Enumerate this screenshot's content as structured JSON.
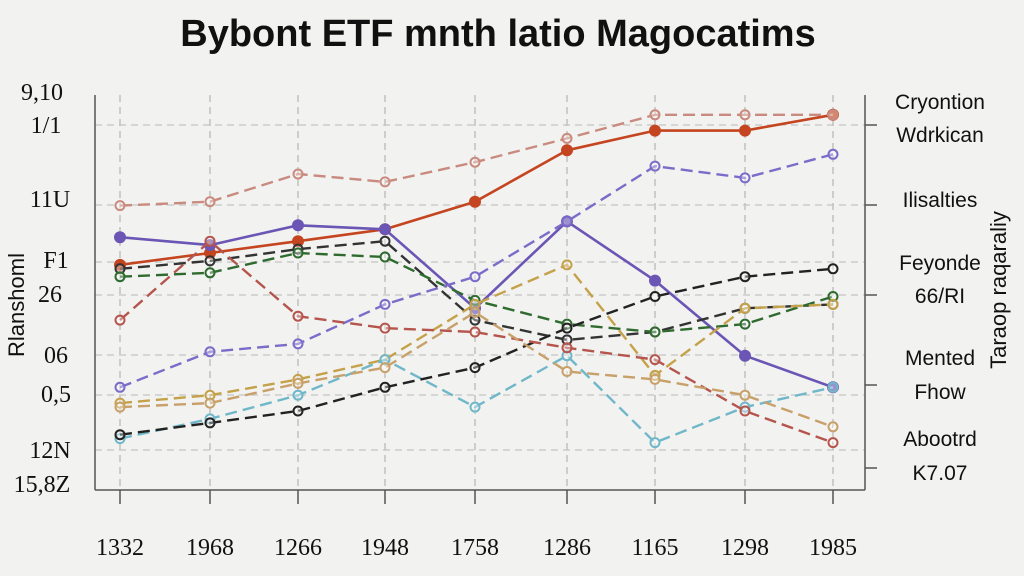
{
  "chart_data": {
    "type": "line",
    "title": "Bybont ETF mnth latio Magocatims",
    "ylabel": "Rlanshoml",
    "right_axis_label": "Taraop raqaraliy",
    "categories": [
      "1332",
      "1968",
      "1266",
      "1948",
      "1758",
      "1286",
      "1165",
      "1298",
      "1985"
    ],
    "y_tick_labels": [
      "9,10",
      "1/1",
      "11U",
      "F1",
      "26",
      "06",
      "0,5",
      "12N",
      "15,8Z"
    ],
    "right_labels": [
      "Cryontion",
      "Wdrkican",
      "Ilisalties",
      "Feyonde",
      "66/RI",
      "Mented",
      "Fhow",
      "Abootrd",
      "K7.07"
    ],
    "ylim": [
      0,
      100
    ],
    "grid": true,
    "series": [
      {
        "color": "#c4451f",
        "style": "solid",
        "values": [
          57,
          60,
          63,
          66,
          73,
          86,
          91,
          91,
          95
        ]
      },
      {
        "color": "#6b55b5",
        "style": "solid",
        "values": [
          64,
          62,
          67,
          66,
          46,
          68,
          53,
          34,
          26
        ]
      },
      {
        "color": "#333333",
        "style": "dashed",
        "values": [
          56,
          58,
          61,
          63,
          43,
          38,
          40,
          46,
          47
        ]
      },
      {
        "color": "#2f6b2f",
        "style": "dashed",
        "values": [
          54,
          55,
          60,
          59,
          48,
          42,
          40,
          42,
          49
        ]
      },
      {
        "color": "#c98a7f",
        "style": "dashed",
        "values": [
          72,
          73,
          80,
          78,
          83,
          89,
          95,
          95,
          95
        ]
      },
      {
        "color": "#7b6cc9",
        "style": "dashed",
        "values": [
          26,
          35,
          37,
          47,
          54,
          68,
          82,
          79,
          85
        ]
      },
      {
        "color": "#c4a24a",
        "style": "dashed",
        "values": [
          22,
          24,
          28,
          33,
          47,
          57,
          29,
          46,
          47
        ]
      },
      {
        "color": "#6fb7c9",
        "style": "dashed",
        "values": [
          13,
          18,
          24,
          33,
          21,
          34,
          12,
          21,
          26
        ]
      },
      {
        "color": "#222222",
        "style": "dashed",
        "values": [
          14,
          17,
          20,
          26,
          31,
          41,
          49,
          54,
          56
        ]
      },
      {
        "color": "#b5554d",
        "style": "dashed",
        "values": [
          43,
          63,
          44,
          41,
          40,
          36,
          33,
          20,
          12
        ]
      },
      {
        "color": "#c8a06a",
        "style": "dashed",
        "values": [
          21,
          22,
          27,
          31,
          45,
          30,
          28,
          24,
          16
        ]
      }
    ]
  }
}
